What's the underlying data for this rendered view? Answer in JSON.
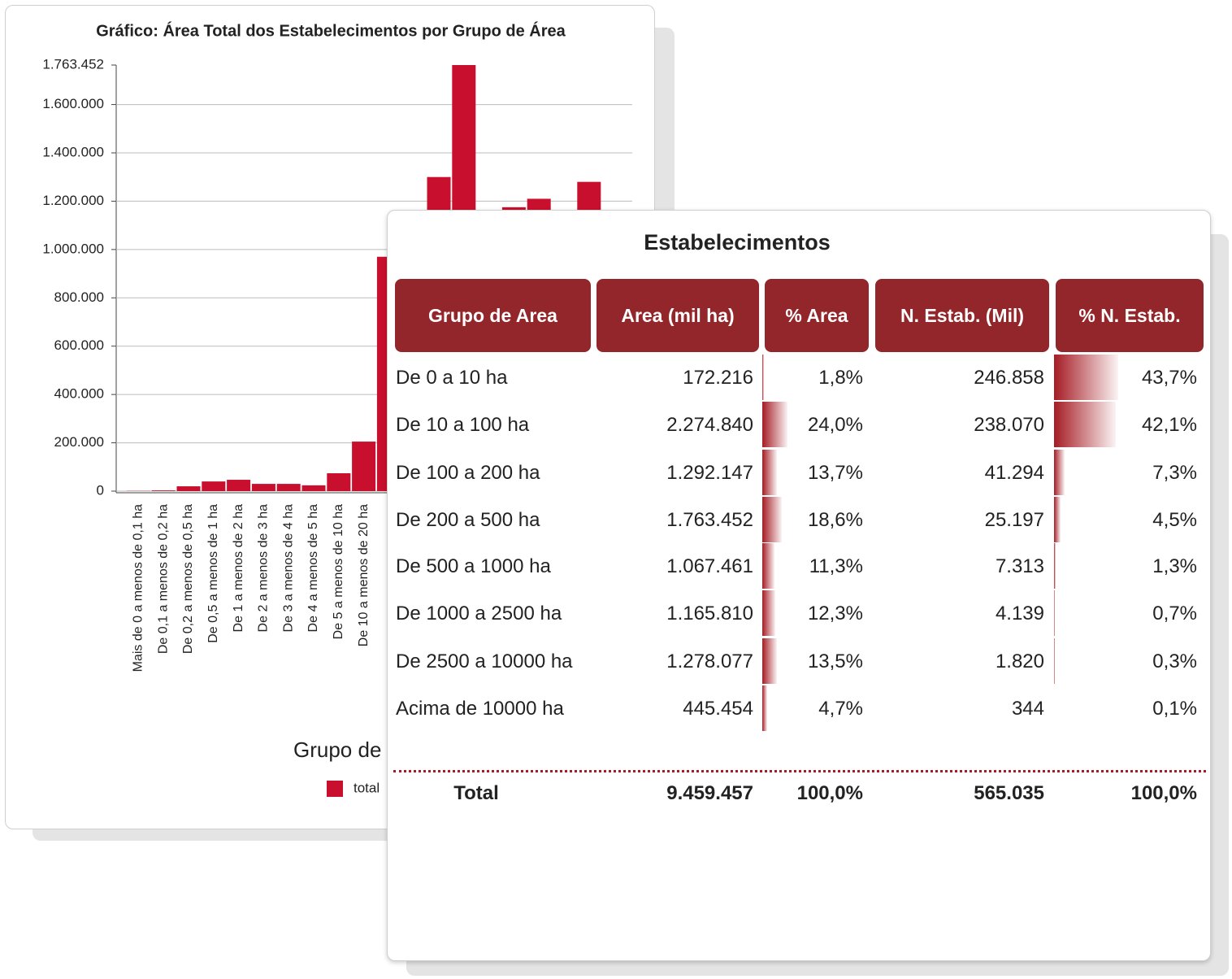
{
  "chart_data": {
    "type": "bar",
    "title": "Gráfico: Área Total dos Estabelecimentos por Grupo de Área",
    "x_label": "Grupo de Área",
    "categories": [
      "Mais de 0 a menos de 0,1 ha",
      "De 0,1 a menos de 0,2 ha",
      "De 0,2 a menos de 0,5 ha",
      "De 0,5 a menos de 1 ha",
      "De 1 a menos de 2 ha",
      "De 2 a menos de 3 ha",
      "De 3 a menos de 4 ha",
      "De 4 a menos de 5 ha",
      "De 5 a menos de 10 ha",
      "De 10 a menos de 20 ha",
      null,
      null,
      null,
      null,
      null,
      null,
      null,
      null,
      null,
      null
    ],
    "series": [
      {
        "name": "total",
        "color": "#c8102e",
        "values": [
          1000,
          3000,
          20000,
          40000,
          47000,
          30000,
          30000,
          24000,
          74000,
          205000,
          970000,
          null,
          1300000,
          1763452,
          null,
          1175000,
          1210000,
          null,
          1280000,
          null
        ]
      }
    ],
    "ylim": [
      0,
      1763452
    ],
    "yticks": [
      0,
      {
        "value": 200000,
        "label": "200.000"
      },
      {
        "value": 400000,
        "label": "400.000"
      },
      {
        "value": 600000,
        "label": "600.000"
      },
      {
        "value": 800000,
        "label": "800.000"
      },
      {
        "value": 1000000,
        "label": "1.000.000"
      },
      {
        "value": 1200000,
        "label": "1.200.000"
      },
      {
        "value": 1400000,
        "label": "1.400.000"
      },
      {
        "value": 1600000,
        "label": "1.600.000"
      },
      {
        "value": 1763452,
        "label": "1.763.452"
      }
    ],
    "grid": true
  },
  "table": {
    "title": "Estabelecimentos",
    "columns": [
      "Grupo de Area",
      "Area (mil ha)",
      "% Area",
      "N. Estab. (Mil)",
      "% N. Estab."
    ],
    "rows": [
      {
        "group": "De 0 a 10 ha",
        "area": "172.216",
        "pct_area": {
          "value": 1.8,
          "label": "1,8%"
        },
        "n_estab": "246.858",
        "pct_n_estab": {
          "value": 43.7,
          "label": "43,7%"
        }
      },
      {
        "group": "De 10 a 100 ha",
        "area": "2.274.840",
        "pct_area": {
          "value": 24.0,
          "label": "24,0%"
        },
        "n_estab": "238.070",
        "pct_n_estab": {
          "value": 42.1,
          "label": "42,1%"
        }
      },
      {
        "group": "De 100 a 200 ha",
        "area": "1.292.147",
        "pct_area": {
          "value": 13.7,
          "label": "13,7%"
        },
        "n_estab": "41.294",
        "pct_n_estab": {
          "value": 7.3,
          "label": "7,3%"
        }
      },
      {
        "group": "De 200 a 500 ha",
        "area": "1.763.452",
        "pct_area": {
          "value": 18.6,
          "label": "18,6%"
        },
        "n_estab": "25.197",
        "pct_n_estab": {
          "value": 4.5,
          "label": "4,5%"
        }
      },
      {
        "group": "De 500 a 1000 ha",
        "area": "1.067.461",
        "pct_area": {
          "value": 11.3,
          "label": "11,3%"
        },
        "n_estab": "7.313",
        "pct_n_estab": {
          "value": 1.3,
          "label": "1,3%"
        }
      },
      {
        "group": "De 1000 a 2500 ha",
        "area": "1.165.810",
        "pct_area": {
          "value": 12.3,
          "label": "12,3%"
        },
        "n_estab": "4.139",
        "pct_n_estab": {
          "value": 0.7,
          "label": "0,7%"
        }
      },
      {
        "group": "De 2500 a 10000 ha",
        "area": "1.278.077",
        "pct_area": {
          "value": 13.5,
          "label": "13,5%"
        },
        "n_estab": "1.820",
        "pct_n_estab": {
          "value": 0.3,
          "label": "0,3%"
        }
      },
      {
        "group": "Acima de 10000 ha",
        "area": "445.454",
        "pct_area": {
          "value": 4.7,
          "label": "4,7%"
        },
        "n_estab": "344",
        "pct_n_estab": {
          "value": 0.1,
          "label": "0,1%"
        }
      }
    ],
    "total": {
      "label": "Total",
      "area": "9.459.457",
      "pct_area": "100,0%",
      "n_estab": "565.035",
      "pct_n_estab": "100,0%"
    }
  }
}
